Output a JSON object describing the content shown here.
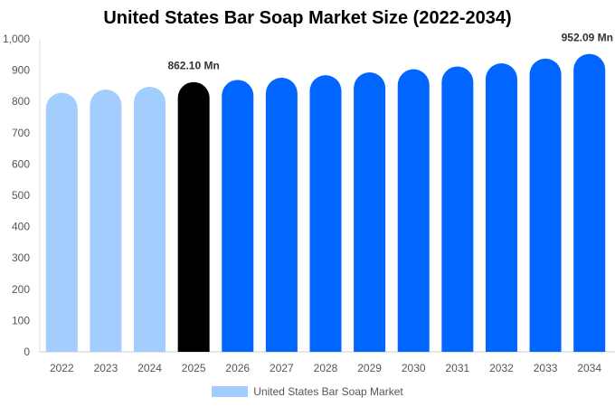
{
  "chart_data": {
    "type": "bar",
    "title": "United States Bar Soap Market Size (2022-2034)",
    "xlabel": "",
    "ylabel": "",
    "ylim": [
      0,
      1000
    ],
    "yticks": [
      0,
      100,
      200,
      300,
      400,
      500,
      600,
      700,
      800,
      900,
      1000
    ],
    "ytick_labels": [
      "0",
      "100",
      "200",
      "300",
      "400",
      "500",
      "600",
      "700",
      "800",
      "900",
      "1,000"
    ],
    "categories": [
      "2022",
      "2023",
      "2024",
      "2025",
      "2026",
      "2027",
      "2028",
      "2029",
      "2030",
      "2031",
      "2032",
      "2033",
      "2034"
    ],
    "series": [
      {
        "name": "United States Bar Soap Market",
        "values": [
          828,
          838,
          847,
          862.1,
          869,
          876,
          884,
          893,
          903,
          912,
          922,
          937,
          952.09
        ]
      }
    ],
    "bar_colors": [
      "#a3cdfd",
      "#a3cdfd",
      "#a3cdfd",
      "#000000",
      "#0066ff",
      "#0066ff",
      "#0066ff",
      "#0066ff",
      "#0066ff",
      "#0066ff",
      "#0066ff",
      "#0066ff",
      "#0066ff"
    ],
    "data_labels": [
      {
        "index": 3,
        "text": "862.10 Mn"
      },
      {
        "index": 12,
        "text": "952.09 Mn"
      }
    ],
    "grid": false,
    "legend": {
      "position": "bottom",
      "label": "United States Bar Soap Market",
      "color": "#a3cdfd"
    }
  }
}
